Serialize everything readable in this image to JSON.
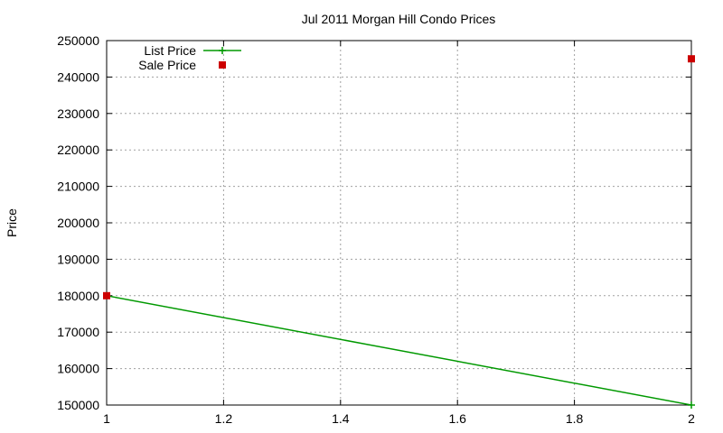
{
  "chart_data": {
    "type": "line",
    "title": "Jul 2011 Morgan Hill Condo Prices",
    "xlabel": "",
    "ylabel": "Price",
    "xlim": [
      1,
      2
    ],
    "ylim": [
      150000,
      250000
    ],
    "x_ticks": [
      1,
      1.2,
      1.4,
      1.6,
      1.8,
      2
    ],
    "x_tick_labels": [
      "1",
      "1.2",
      "1.4",
      "1.6",
      "1.8",
      "2"
    ],
    "y_ticks": [
      150000,
      160000,
      170000,
      180000,
      190000,
      200000,
      210000,
      220000,
      230000,
      240000,
      250000
    ],
    "y_tick_labels": [
      "150000",
      "160000",
      "170000",
      "180000",
      "190000",
      "200000",
      "210000",
      "220000",
      "230000",
      "240000",
      "250000"
    ],
    "grid": true,
    "legend_position": "top-left",
    "series": [
      {
        "name": "List Price",
        "style": "line",
        "color": "#009900",
        "points": [
          [
            1,
            180000
          ],
          [
            2,
            150000
          ]
        ]
      },
      {
        "name": "Sale Price",
        "style": "points",
        "color": "#cc0000",
        "points": [
          [
            1,
            180000
          ],
          [
            2,
            245000
          ]
        ]
      }
    ]
  }
}
